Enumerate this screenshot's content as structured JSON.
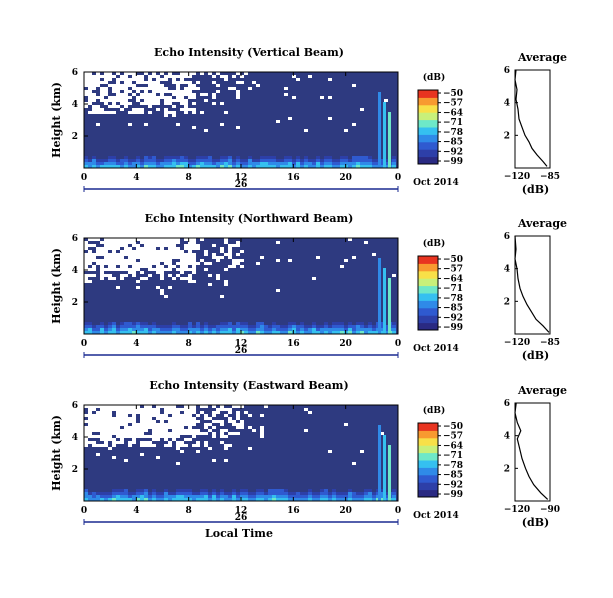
{
  "colors": {
    "background_navy": "#2e3a80",
    "colormap": [
      "#2a2a82",
      "#2d3fa8",
      "#2f5ad0",
      "#2f8ae8",
      "#35c0f0",
      "#6ee8c8",
      "#c8f07a",
      "#f8e048",
      "#f89a30",
      "#e83420"
    ]
  },
  "chart_data": [
    {
      "type": "heatmap",
      "title": "Echo Intensity (Vertical Beam)",
      "ylabel": "Height (km)",
      "x_ticks": [
        "0",
        "4",
        "8",
        "12",
        "16",
        "20",
        "0"
      ],
      "y_ticks": [
        "2",
        "4",
        "6"
      ],
      "ylim": [
        0,
        6
      ],
      "xlim": [
        0,
        24
      ],
      "date_center": "26",
      "date_label": "Oct 2014",
      "colorbar": {
        "label": "(dB)",
        "ticks": [
          "−50",
          "−57",
          "−64",
          "−71",
          "−78",
          "−85",
          "−92",
          "−99"
        ]
      },
      "average": {
        "title": "Average",
        "x_ticks": [
          "−120",
          "−85"
        ],
        "y_ticks": [
          "2",
          "4",
          "6"
        ],
        "xlabel": "(dB)",
        "xlim": [
          -120,
          -85
        ],
        "profile": [
          [
            -88,
            0.1
          ],
          [
            -92,
            0.4
          ],
          [
            -98,
            0.8
          ],
          [
            -103,
            1.2
          ],
          [
            -106,
            1.6
          ],
          [
            -110,
            2.0
          ],
          [
            -113,
            2.5
          ],
          [
            -116,
            3.0
          ],
          [
            -117,
            3.6
          ],
          [
            -119,
            4.2
          ],
          [
            -118,
            4.8
          ],
          [
            -120,
            5.4
          ],
          [
            -119,
            6.0
          ]
        ]
      }
    },
    {
      "type": "heatmap",
      "title": "Echo Intensity (Northward Beam)",
      "ylabel": "Height (km)",
      "x_ticks": [
        "0",
        "4",
        "8",
        "12",
        "16",
        "20",
        "0"
      ],
      "y_ticks": [
        "2",
        "4",
        "6"
      ],
      "ylim": [
        0,
        6
      ],
      "xlim": [
        0,
        24
      ],
      "date_center": "26",
      "date_label": "Oct 2014",
      "colorbar": {
        "label": "(dB)",
        "ticks": [
          "−50",
          "−57",
          "−64",
          "−71",
          "−78",
          "−85",
          "−92",
          "−99"
        ]
      },
      "average": {
        "title": "Average",
        "x_ticks": [
          "−120",
          "−85"
        ],
        "y_ticks": [
          "2",
          "4",
          "6"
        ],
        "xlabel": "(dB)",
        "xlim": [
          -120,
          -85
        ],
        "profile": [
          [
            -86,
            0.1
          ],
          [
            -92,
            0.5
          ],
          [
            -99,
            0.9
          ],
          [
            -104,
            1.4
          ],
          [
            -108,
            1.8
          ],
          [
            -112,
            2.3
          ],
          [
            -115,
            2.8
          ],
          [
            -117,
            3.4
          ],
          [
            -118,
            4.0
          ],
          [
            -120,
            4.6
          ],
          [
            -119,
            5.2
          ],
          [
            -120,
            6.0
          ]
        ]
      }
    },
    {
      "type": "heatmap",
      "title": "Echo Intensity (Eastward Beam)",
      "ylabel": "Height (km)",
      "x_ticks": [
        "0",
        "4",
        "8",
        "12",
        "16",
        "20",
        "0"
      ],
      "y_ticks": [
        "2",
        "4",
        "6"
      ],
      "ylim": [
        0,
        6
      ],
      "xlim": [
        0,
        24
      ],
      "date_center": "26",
      "date_label": "Oct 2014",
      "xlabel": "Local Time",
      "colorbar": {
        "label": "(dB)",
        "ticks": [
          "−50",
          "−57",
          "−64",
          "−71",
          "−78",
          "−85",
          "−92",
          "−99"
        ]
      },
      "average": {
        "title": "Average",
        "x_ticks": [
          "−120",
          "−90"
        ],
        "y_ticks": [
          "2",
          "4",
          "6"
        ],
        "xlabel": "(dB)",
        "xlim": [
          -120,
          -90
        ],
        "profile": [
          [
            -92,
            0.1
          ],
          [
            -98,
            0.5
          ],
          [
            -104,
            1.0
          ],
          [
            -108,
            1.5
          ],
          [
            -111,
            2.0
          ],
          [
            -114,
            2.6
          ],
          [
            -116,
            3.2
          ],
          [
            -118,
            3.8
          ],
          [
            -115,
            4.3
          ],
          [
            -118,
            4.8
          ],
          [
            -120,
            5.4
          ],
          [
            -119,
            6.0
          ]
        ]
      }
    }
  ]
}
